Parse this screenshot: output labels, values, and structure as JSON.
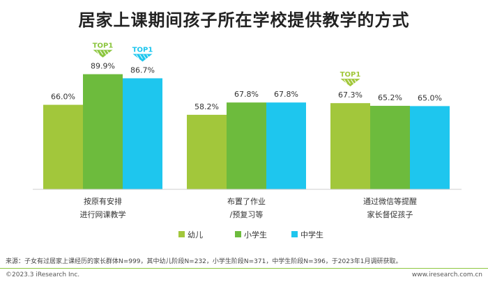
{
  "chart_data": {
    "type": "bar",
    "title": "居家上课期间孩子所在学校提供教学的方式",
    "categories": [
      [
        "按原有安排",
        "进行网课教学"
      ],
      [
        "布置了作业",
        "/预复习等"
      ],
      [
        "通过微信等提醒",
        "家长督促孩子"
      ]
    ],
    "series": [
      {
        "name": "幼儿",
        "color": "#a2c73b",
        "values": [
          66.0,
          58.2,
          67.3
        ]
      },
      {
        "name": "小学生",
        "color": "#6dbb3d",
        "values": [
          89.9,
          67.8,
          65.2
        ]
      },
      {
        "name": "中学生",
        "color": "#1ec6ee",
        "values": [
          86.7,
          67.8,
          65.0
        ]
      }
    ],
    "value_labels": [
      [
        "66.0%",
        "89.9%",
        "86.7%"
      ],
      [
        "58.2%",
        "67.8%",
        "67.8%"
      ],
      [
        "67.3%",
        "65.2%",
        "65.0%"
      ]
    ],
    "top_markers": [
      {
        "category": 0,
        "series": 1,
        "label": "TOP1",
        "color": "#8cc63f"
      },
      {
        "category": 0,
        "series": 2,
        "label": "TOP1",
        "color": "#1ec6ee"
      },
      {
        "category": 2,
        "series": 0,
        "label": "TOP1",
        "color": "#a2c73b"
      }
    ],
    "ylim": [
      0,
      100
    ],
    "legend_position": "bottom-center"
  },
  "footer": {
    "source": "来源：子女有过居家上课经历的家长群体N=999，其中幼儿阶段N=232，小学生阶段N=371，中学生阶段N=396，于2023年1月调研获取。",
    "copyright": "©2023.3 iResearch Inc.",
    "website": "www.iresearch.com.cn"
  }
}
